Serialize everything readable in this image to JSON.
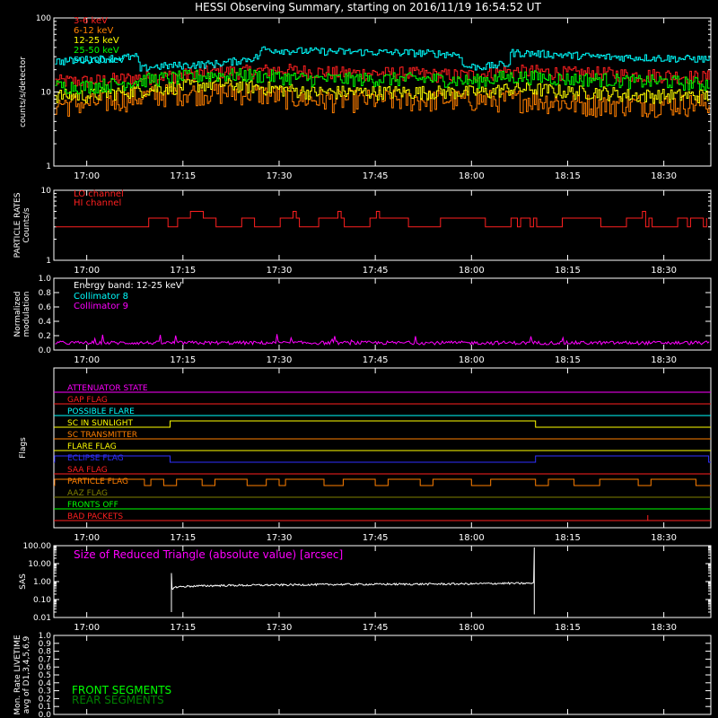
{
  "title": "HESSI Observing Summary, starting on 2016/11/19 16:54:52 UT",
  "time_ticks": [
    "17:00",
    "17:15",
    "17:30",
    "17:45",
    "18:00",
    "18:15",
    "18:30"
  ],
  "time_tick_minutes": [
    0,
    15,
    30,
    45,
    60,
    75,
    90
  ],
  "time_range_minutes": [
    -5.13,
    97.33
  ],
  "colors": {
    "background": "#000000",
    "axis": "#ffffff",
    "c3_6": "#ff2020",
    "c6_12": "#ff7f00",
    "c12_25": "#ffff00",
    "c25_50": "#00ff00",
    "c50_100": "#00ffff",
    "magenta": "#ff00ff",
    "green": "#00ff00",
    "darkgreen": "#008000"
  },
  "chart_data": [
    {
      "type": "line",
      "name": "count_rates",
      "ylabel": "counts/s/detector",
      "yscale": "log",
      "ylim": [
        1,
        100
      ],
      "yticks": [
        "1",
        "10",
        "100"
      ],
      "series": [
        {
          "name": "3-6 keV",
          "color": "#ff2020",
          "x": [
            -4,
            0,
            5,
            10,
            15,
            20,
            25,
            30,
            35,
            40,
            45,
            50,
            55,
            60,
            63,
            65,
            70,
            75,
            80,
            85,
            90,
            95
          ],
          "y": [
            14,
            14,
            15,
            16,
            17,
            19,
            19,
            20,
            19,
            18,
            18,
            18,
            17,
            17,
            18,
            19,
            19,
            18,
            18,
            17,
            17,
            16
          ]
        },
        {
          "name": "6-12 keV",
          "color": "#ff7f00",
          "x": [
            -4,
            0,
            5,
            10,
            15,
            20,
            25,
            30,
            35,
            40,
            45,
            50,
            55,
            60,
            63,
            65,
            70,
            75,
            80,
            85,
            90,
            95
          ],
          "y": [
            7,
            7,
            8,
            9,
            10,
            10,
            10,
            9,
            8,
            8,
            8,
            8,
            8,
            8,
            8,
            8,
            8,
            7,
            7,
            7,
            7,
            7
          ]
        },
        {
          "name": "12-25 keV",
          "color": "#ffff00",
          "x": [
            -4,
            0,
            5,
            10,
            15,
            20,
            25,
            30,
            35,
            40,
            45,
            50,
            55,
            60,
            63,
            65,
            70,
            75,
            80,
            85,
            90,
            95
          ],
          "y": [
            9,
            9,
            10,
            11,
            12,
            13,
            12,
            11,
            10,
            10,
            10,
            10,
            10,
            10,
            10,
            11,
            11,
            10,
            10,
            9,
            9,
            9
          ]
        },
        {
          "name": "25-50 keV",
          "color": "#00ff00",
          "x": [
            -4,
            0,
            5,
            10,
            15,
            20,
            25,
            30,
            35,
            40,
            45,
            50,
            55,
            60,
            63,
            65,
            70,
            75,
            80,
            85,
            90,
            95
          ],
          "y": [
            12,
            12,
            13,
            15,
            16,
            17,
            17,
            16,
            15,
            15,
            15,
            15,
            15,
            14,
            15,
            16,
            16,
            15,
            15,
            14,
            14,
            13
          ]
        },
        {
          "name": "50-100 keV",
          "color": "#00ffff",
          "x": [
            -4,
            8,
            8.1,
            10,
            15,
            20,
            23,
            25,
            26.9,
            27,
            32,
            40,
            50,
            55,
            58.4,
            58.5,
            62,
            65.9,
            66,
            70,
            80,
            95
          ],
          "y": [
            26,
            30,
            20,
            22,
            23,
            24,
            26,
            28,
            30,
            38,
            36,
            35,
            34,
            33,
            32,
            22,
            22,
            24,
            34,
            33,
            30,
            28
          ]
        }
      ]
    },
    {
      "type": "line",
      "name": "particle_rates",
      "ylabel": "PARTICLE RATES\nCounts/s",
      "yscale": "log",
      "ylim": [
        1,
        10
      ],
      "yticks": [
        "1",
        "10"
      ],
      "series": [
        {
          "name": "LO channel",
          "color": "#ff2020",
          "x": [],
          "y": []
        },
        {
          "name": "HI channel",
          "color": "#ff2020",
          "x": [
            -4,
            9,
            9.1,
            12,
            12.1,
            14,
            14.1,
            16,
            16.1,
            18,
            18.1,
            20,
            20.1,
            24,
            24.1,
            26,
            26.1,
            30,
            30.1,
            33,
            33.1,
            36,
            36.1,
            40,
            40.1,
            44,
            44.1,
            50,
            50.1,
            55,
            55.1,
            62,
            62.1,
            66,
            66.1,
            70,
            70.1,
            74,
            74.1,
            80,
            80.1,
            84,
            84.1,
            88,
            88.1,
            92,
            92.1,
            95
          ],
          "y": [
            3,
            3,
            4,
            4,
            3,
            3,
            4,
            4,
            5,
            5,
            4,
            4,
            3,
            3,
            4,
            4,
            3,
            3,
            4,
            4,
            3,
            3,
            4,
            4,
            3,
            3,
            4,
            4,
            3,
            3,
            4,
            4,
            3,
            3,
            4,
            4,
            3,
            3,
            4,
            4,
            3,
            3,
            4,
            4,
            3,
            3,
            4,
            4
          ]
        }
      ]
    },
    {
      "type": "line",
      "name": "modulation",
      "ylabel": "Normalized\nmodulation",
      "ylim": [
        0.0,
        1.0
      ],
      "yticks": [
        "0.0",
        "0.2",
        "0.4",
        "0.6",
        "0.8",
        "1.0"
      ],
      "annotation": "Energy band: 12-25 keV",
      "series": [
        {
          "name": "Collimator 8",
          "color": "#00ffff",
          "x": [],
          "y": []
        },
        {
          "name": "Collimator 9",
          "color": "#ff00ff",
          "x": [
            -4,
            95
          ],
          "y": [
            0.1,
            0.1
          ]
        }
      ]
    },
    {
      "type": "table",
      "name": "flags",
      "ylabel": "Flags",
      "rows": [
        {
          "label": "ATTENUATOR STATE",
          "color": "#ff00ff",
          "highs": []
        },
        {
          "label": "GAP FLAG",
          "color": "#ff2020",
          "highs": []
        },
        {
          "label": "POSSIBLE FLARE",
          "color": "#00ffff",
          "highs": []
        },
        {
          "label": "SC IN SUNLIGHT",
          "color": "#ffff00",
          "highs": [
            [
              13,
              70
            ]
          ]
        },
        {
          "label": "SC TRANSMITTER",
          "color": "#ff7f00",
          "highs": []
        },
        {
          "label": "FLARE FLAG",
          "color": "#ffff00",
          "highs": []
        },
        {
          "label": "ECLIPSE FLAG",
          "color": "#3030ff",
          "highs": [
            [
              -5,
              13
            ],
            [
              70,
              97
            ]
          ]
        },
        {
          "label": "SAA FLAG",
          "color": "#ff2020",
          "highs": []
        },
        {
          "label": "PARTICLE FLAG",
          "color": "#ff7f00",
          "highs": [
            [
              -5,
              9
            ],
            [
              10,
              12
            ],
            [
              14,
              18
            ],
            [
              20,
              25
            ],
            [
              28,
              30
            ],
            [
              31,
              37
            ],
            [
              40,
              45
            ],
            [
              47,
              52
            ],
            [
              54,
              60
            ],
            [
              63,
              70
            ],
            [
              72,
              76
            ],
            [
              80,
              86
            ],
            [
              88,
              95
            ]
          ]
        },
        {
          "label": "AAZ FLAG",
          "color": "#808000",
          "highs": []
        },
        {
          "label": "FRONTS OFF",
          "color": "#00ff00",
          "highs": []
        },
        {
          "label": "BAD PACKETS",
          "color": "#ff2020",
          "highs": []
        }
      ]
    },
    {
      "type": "line",
      "name": "sas",
      "ylabel": "SAS",
      "yscale": "log",
      "ylim": [
        0.01,
        100
      ],
      "yticks": [
        "0.01",
        "0.10",
        "1.00",
        "10.00",
        "100.00"
      ],
      "annotation": "Size of Reduced Triangle (absolute value) [arcsec]",
      "series": [
        {
          "name": "",
          "color": "#ffffff",
          "x": [
            13.2,
            14,
            16,
            20,
            30,
            40,
            50,
            60,
            65,
            69.8
          ],
          "y": [
            0.4,
            0.5,
            0.55,
            0.6,
            0.65,
            0.7,
            0.72,
            0.75,
            0.8,
            0.8
          ]
        }
      ]
    },
    {
      "type": "line",
      "name": "livetime",
      "ylabel": "Mon. Rate LIVETIME\navg of D1,3,4,5,6,9",
      "ylim": [
        0.0,
        1.0
      ],
      "yticks": [
        "0.0",
        "0.1",
        "0.2",
        "0.3",
        "0.4",
        "0.5",
        "0.6",
        "0.7",
        "0.8",
        "0.9",
        "1.0"
      ],
      "series": [
        {
          "name": "FRONT SEGMENTS",
          "color": "#00ff00",
          "x": [],
          "y": []
        },
        {
          "name": "REAR SEGMENTS",
          "color": "#008000",
          "x": [],
          "y": []
        }
      ]
    }
  ]
}
